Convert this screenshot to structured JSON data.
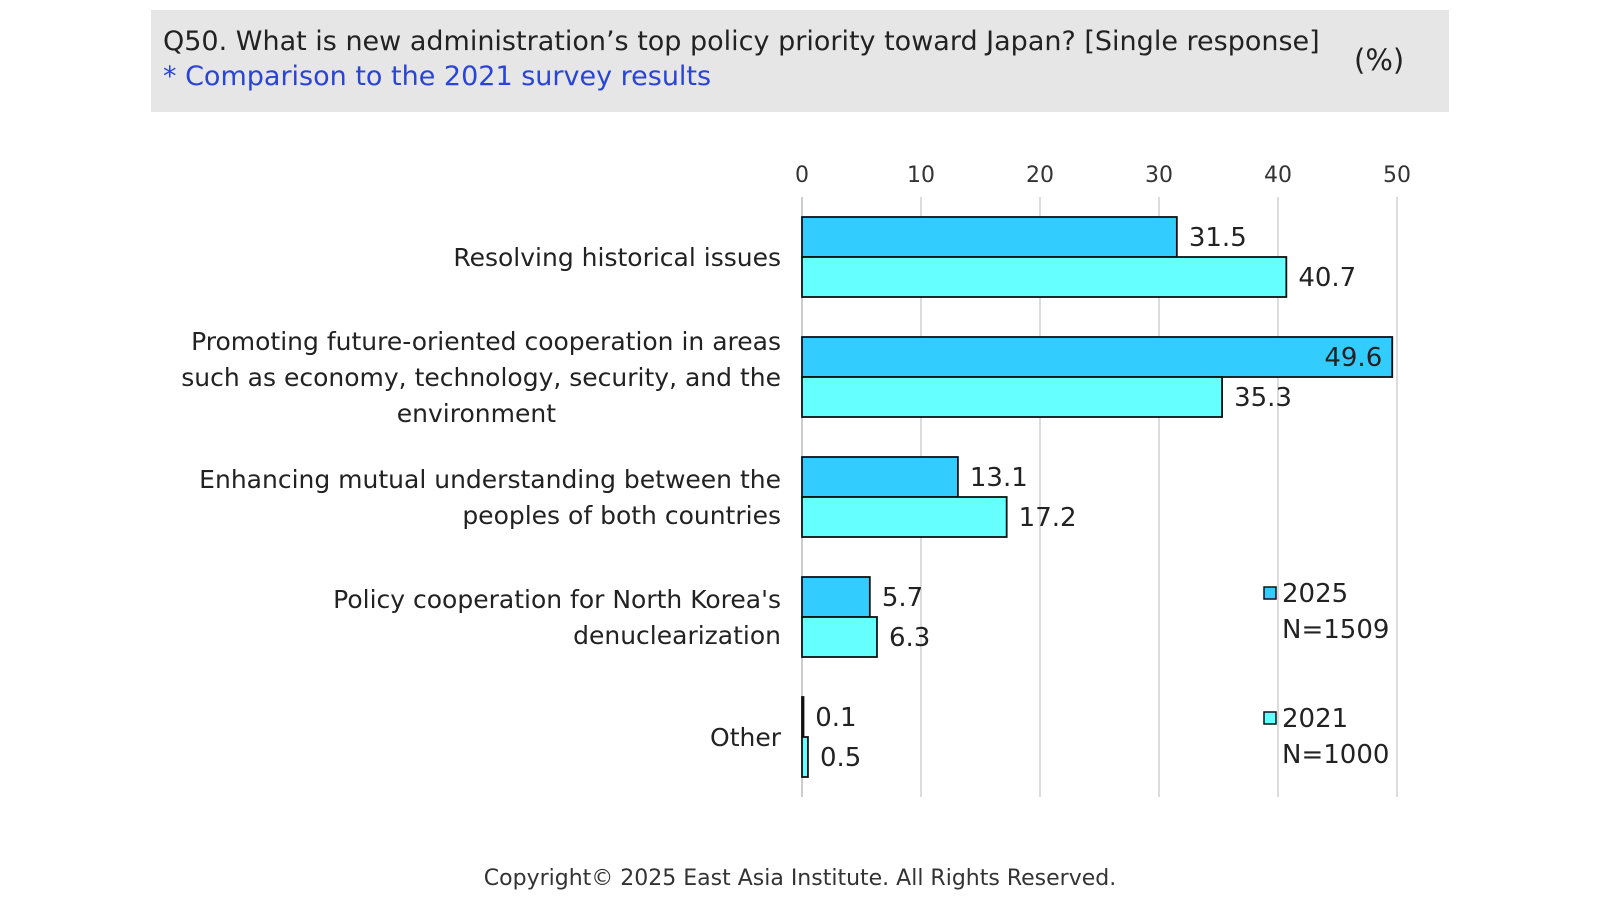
{
  "header": {
    "title": "Q50. What is new administration’s top policy priority toward Japan? [Single response]",
    "subtitle": "* Comparison to the 2021 survey results",
    "unit": "(%)"
  },
  "footer": {
    "copyright": "Copyright© 2025 East Asia Institute. All Rights Reserved."
  },
  "colors": {
    "series_2025": "#33ccff",
    "series_2021": "#66ffff",
    "outline": "#111111",
    "grid": "#d0d0d0",
    "header_bg": "#e6e6e6",
    "subtitle": "#2a44d6"
  },
  "chart_data": {
    "type": "bar",
    "orientation": "horizontal",
    "categories": [
      [
        "Resolving historical issues"
      ],
      [
        "Promoting future-oriented cooperation in areas",
        "such as economy, technology, security, and the",
        "environment"
      ],
      [
        "Enhancing mutual understanding between the",
        "peoples of both countries"
      ],
      [
        "Policy cooperation for North Korea's",
        "denuclearization"
      ],
      [
        "Other"
      ]
    ],
    "series": [
      {
        "name": "2025",
        "sample": "N=1509",
        "values": [
          31.5,
          49.6,
          13.1,
          5.7,
          0.1
        ]
      },
      {
        "name": "2021",
        "sample": "N=1000",
        "values": [
          40.7,
          35.3,
          17.2,
          6.3,
          0.5
        ]
      }
    ],
    "xlim": [
      0,
      50
    ],
    "xticks": [
      0,
      10,
      20,
      30,
      40,
      50
    ],
    "axis_position": "top",
    "grid": true,
    "legend_position": "right"
  }
}
